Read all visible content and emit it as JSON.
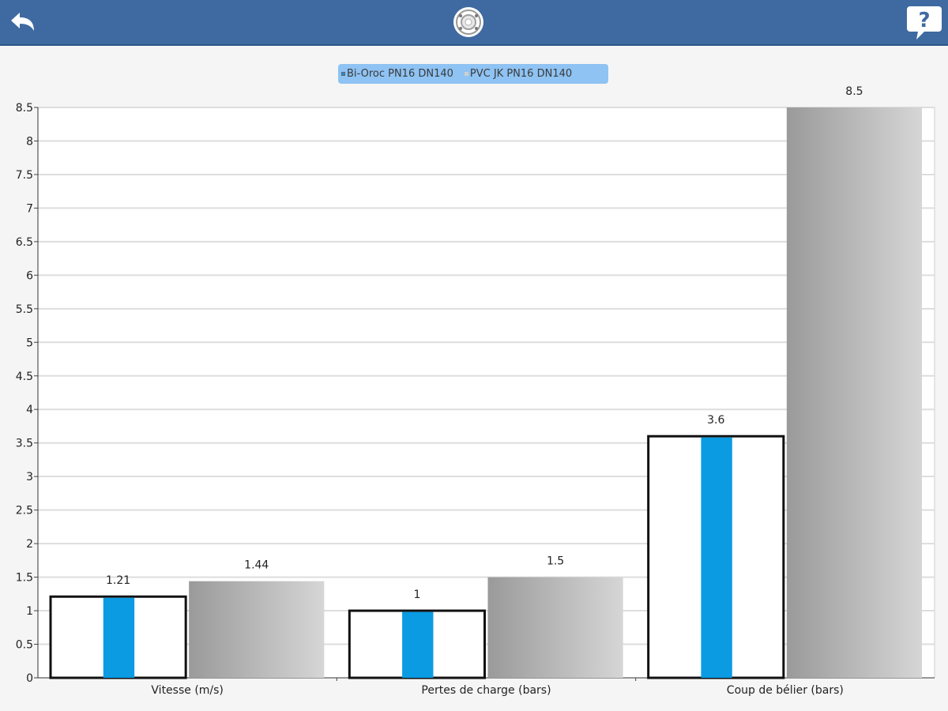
{
  "toolbar": {
    "back_icon": "back-arrow-icon",
    "logo_icon": "pipe-section-icon",
    "help_icon": "help-speech-bubble-icon"
  },
  "chart_data": {
    "type": "bar",
    "categories": [
      "Vitesse (m/s)",
      "Pertes de charge (bars)",
      "Coup de bélier (bars)"
    ],
    "series": [
      {
        "name": "Bi-Oroc PN16 DN140",
        "values": [
          1.21,
          1,
          3.6
        ],
        "value_labels": [
          "1.21",
          "1",
          "3.6"
        ],
        "color": "#0a9be3"
      },
      {
        "name": "PVC JK PN16 DN140",
        "values": [
          1.44,
          1.5,
          8.5
        ],
        "value_labels": [
          "1.44",
          "1.5",
          "8.5"
        ],
        "color": "#b4b4b4"
      }
    ],
    "ylim": [
      0,
      8.5
    ],
    "ytick_labels": [
      "0",
      "0.5",
      "1",
      "1.5",
      "2",
      "2.5",
      "3",
      "3.5",
      "4",
      "4.5",
      "5",
      "5.5",
      "6",
      "6.5",
      "7",
      "7.5",
      "8",
      "8.5"
    ],
    "grid": true,
    "legend": "top-center",
    "colors": {
      "legend_bg": "#8ec3f3",
      "header_bg": "#3f6aa1"
    }
  }
}
